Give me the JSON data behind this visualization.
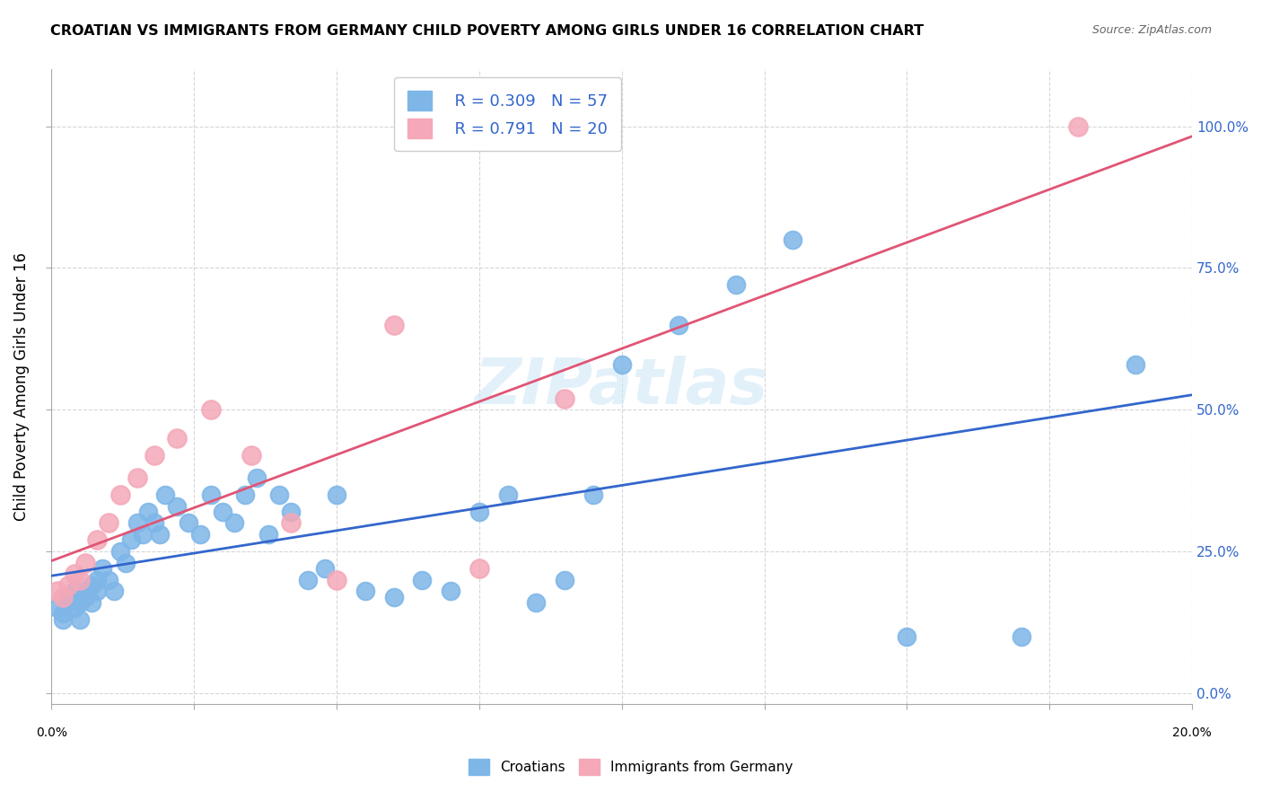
{
  "title": "CROATIAN VS IMMIGRANTS FROM GERMANY CHILD POVERTY AMONG GIRLS UNDER 16 CORRELATION CHART",
  "source": "Source: ZipAtlas.com",
  "ylabel": "Child Poverty Among Girls Under 16",
  "legend_label1": "Croatians",
  "legend_label2": "Immigrants from Germany",
  "R1": 0.309,
  "N1": 57,
  "R2": 0.791,
  "N2": 20,
  "blue_color": "#7EB6E8",
  "pink_color": "#F4A8B8",
  "blue_line_color": "#3366CC",
  "pink_line_color": "#E05575",
  "right_axis_color": "#3366CC",
  "watermark": "ZIPatlas",
  "blue_scatter_x": [
    0.001,
    0.002,
    0.002,
    0.003,
    0.003,
    0.004,
    0.004,
    0.005,
    0.005,
    0.006,
    0.006,
    0.007,
    0.007,
    0.008,
    0.008,
    0.009,
    0.01,
    0.011,
    0.012,
    0.013,
    0.014,
    0.015,
    0.016,
    0.017,
    0.018,
    0.019,
    0.02,
    0.022,
    0.024,
    0.026,
    0.028,
    0.03,
    0.032,
    0.034,
    0.036,
    0.038,
    0.04,
    0.042,
    0.045,
    0.048,
    0.05,
    0.055,
    0.06,
    0.065,
    0.07,
    0.075,
    0.08,
    0.085,
    0.09,
    0.095,
    0.1,
    0.11,
    0.12,
    0.13,
    0.15,
    0.17,
    0.19
  ],
  "blue_scatter_y": [
    0.15,
    0.14,
    0.13,
    0.16,
    0.17,
    0.15,
    0.18,
    0.13,
    0.16,
    0.17,
    0.18,
    0.16,
    0.19,
    0.18,
    0.2,
    0.22,
    0.2,
    0.18,
    0.25,
    0.23,
    0.27,
    0.3,
    0.28,
    0.32,
    0.3,
    0.28,
    0.35,
    0.33,
    0.3,
    0.28,
    0.35,
    0.32,
    0.3,
    0.35,
    0.38,
    0.28,
    0.35,
    0.32,
    0.2,
    0.22,
    0.35,
    0.18,
    0.17,
    0.2,
    0.18,
    0.32,
    0.35,
    0.16,
    0.2,
    0.35,
    0.58,
    0.65,
    0.72,
    0.8,
    0.1,
    0.1,
    0.58
  ],
  "pink_scatter_x": [
    0.001,
    0.002,
    0.003,
    0.004,
    0.005,
    0.006,
    0.008,
    0.01,
    0.012,
    0.015,
    0.018,
    0.022,
    0.028,
    0.035,
    0.042,
    0.05,
    0.06,
    0.075,
    0.09,
    0.18
  ],
  "pink_scatter_y": [
    0.18,
    0.17,
    0.19,
    0.21,
    0.2,
    0.23,
    0.27,
    0.3,
    0.35,
    0.38,
    0.42,
    0.45,
    0.5,
    0.42,
    0.3,
    0.2,
    0.65,
    0.22,
    0.52,
    1.0
  ],
  "xlim": [
    0.0,
    0.2
  ],
  "ylim": [
    -0.02,
    1.1
  ],
  "right_yticks": [
    0.0,
    0.25,
    0.5,
    0.75,
    1.0
  ],
  "right_yticklabels": [
    "0.0%",
    "25.0%",
    "50.0%",
    "75.0%",
    "100.0%"
  ],
  "xticks": [
    0.0,
    0.025,
    0.05,
    0.075,
    0.1,
    0.125,
    0.15,
    0.175,
    0.2
  ],
  "yticks": [
    0.0,
    0.25,
    0.5,
    0.75,
    1.0
  ]
}
